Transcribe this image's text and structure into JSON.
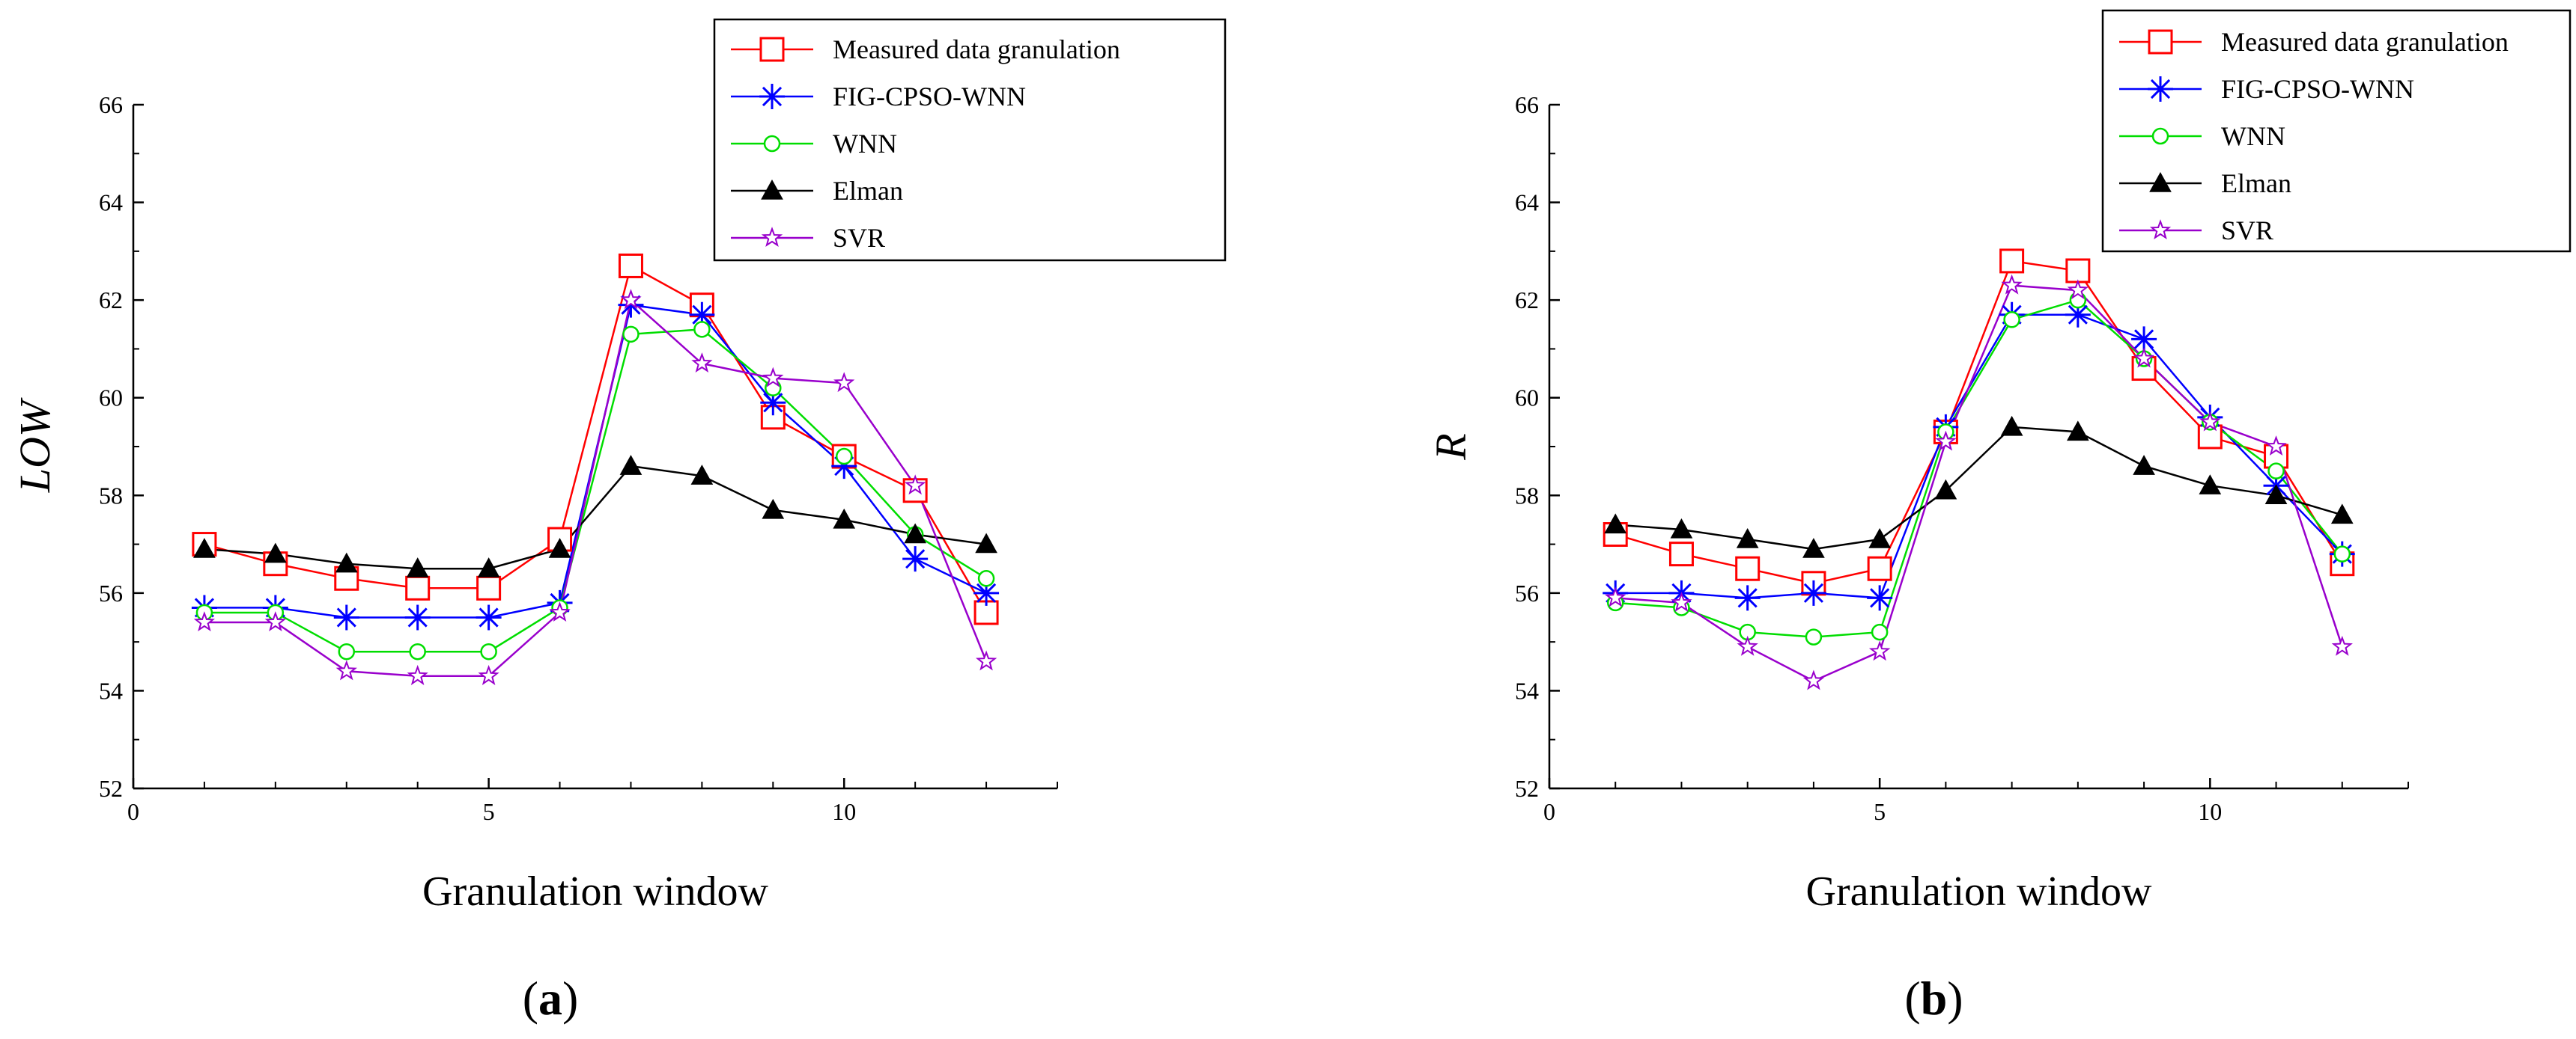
{
  "chart_data": [
    {
      "type": "line",
      "panel_label": "a",
      "title": "",
      "xlabel": "Granulation window",
      "ylabel": "LOW",
      "xlim": [
        0,
        13
      ],
      "ylim": [
        52,
        66
      ],
      "x_ticks": [
        0,
        5,
        10
      ],
      "y_ticks": [
        52,
        54,
        56,
        58,
        60,
        62,
        64,
        66
      ],
      "legend_position": "top-right",
      "x": [
        1,
        2,
        3,
        4,
        5,
        6,
        7,
        8,
        9,
        10,
        11,
        12
      ],
      "series": [
        {
          "name": "Measured data granulation",
          "color": "#ff0000",
          "marker": "square",
          "values": [
            57.0,
            56.6,
            56.3,
            56.1,
            56.1,
            57.1,
            62.7,
            61.9,
            59.6,
            58.8,
            58.1,
            55.6
          ]
        },
        {
          "name": "FIG-CPSO-WNN",
          "color": "#0000ff",
          "marker": "asterisk",
          "values": [
            55.7,
            55.7,
            55.5,
            55.5,
            55.5,
            55.8,
            61.9,
            61.7,
            59.9,
            58.6,
            56.7,
            56.0
          ]
        },
        {
          "name": "WNN",
          "color": "#00dd00",
          "marker": "circle",
          "values": [
            55.6,
            55.6,
            54.8,
            54.8,
            54.8,
            55.7,
            61.3,
            61.4,
            60.2,
            58.8,
            57.2,
            56.3
          ]
        },
        {
          "name": "Elman",
          "color": "#000000",
          "marker": "triangle",
          "values": [
            56.9,
            56.8,
            56.6,
            56.5,
            56.5,
            56.9,
            58.6,
            58.4,
            57.7,
            57.5,
            57.2,
            57.0
          ]
        },
        {
          "name": "SVR",
          "color": "#9900cc",
          "marker": "star",
          "values": [
            55.4,
            55.4,
            54.4,
            54.3,
            54.3,
            55.6,
            62.0,
            60.7,
            60.4,
            60.3,
            58.2,
            54.6
          ]
        }
      ]
    },
    {
      "type": "line",
      "panel_label": "b",
      "title": "",
      "xlabel": "Granulation window",
      "ylabel": "R",
      "xlim": [
        0,
        13
      ],
      "ylim": [
        52,
        66
      ],
      "x_ticks": [
        0,
        5,
        10
      ],
      "y_ticks": [
        52,
        54,
        56,
        58,
        60,
        62,
        64,
        66
      ],
      "legend_position": "top-right",
      "x": [
        1,
        2,
        3,
        4,
        5,
        6,
        7,
        8,
        9,
        10,
        11,
        12
      ],
      "series": [
        {
          "name": "Measured data granulation",
          "color": "#ff0000",
          "marker": "square",
          "values": [
            57.2,
            56.8,
            56.5,
            56.2,
            56.5,
            59.3,
            62.8,
            62.6,
            60.6,
            59.2,
            58.8,
            56.6
          ]
        },
        {
          "name": "FIG-CPSO-WNN",
          "color": "#0000ff",
          "marker": "asterisk",
          "values": [
            56.0,
            56.0,
            55.9,
            56.0,
            55.9,
            59.4,
            61.7,
            61.7,
            61.2,
            59.6,
            58.2,
            56.8
          ]
        },
        {
          "name": "WNN",
          "color": "#00dd00",
          "marker": "circle",
          "values": [
            55.8,
            55.7,
            55.2,
            55.1,
            55.2,
            59.3,
            61.6,
            62.0,
            60.8,
            59.5,
            58.5,
            56.8
          ]
        },
        {
          "name": "Elman",
          "color": "#000000",
          "marker": "triangle",
          "values": [
            57.4,
            57.3,
            57.1,
            56.9,
            57.1,
            58.1,
            59.4,
            59.3,
            58.6,
            58.2,
            58.0,
            57.6
          ]
        },
        {
          "name": "SVR",
          "color": "#9900cc",
          "marker": "star",
          "values": [
            55.9,
            55.8,
            54.9,
            54.2,
            54.8,
            59.1,
            62.3,
            62.2,
            60.8,
            59.5,
            59.0,
            54.9
          ]
        }
      ]
    }
  ]
}
